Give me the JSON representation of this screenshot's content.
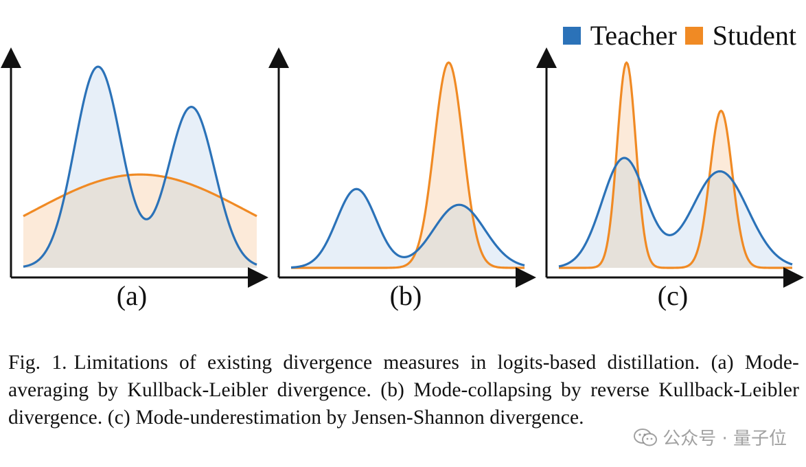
{
  "legend": [
    {
      "label": "Teacher",
      "color": "#2b72b8",
      "icon": "square-swatch"
    },
    {
      "label": "Student",
      "color": "#f08a24",
      "icon": "square-swatch"
    }
  ],
  "panels": [
    {
      "label": "(a)"
    },
    {
      "label": "(b)"
    },
    {
      "label": "(c)"
    }
  ],
  "caption": {
    "fig_num": "Fig. 1.",
    "text": "Limitations of existing divergence measures in logits-based distillation. (a) Mode-averaging by Kullback-Leibler divergence. (b) Mode-collapsing by reverse Kullback-Leibler divergence. (c) Mode-underestimation by Jensen-Shannon divergence."
  },
  "watermark": {
    "icon": "wechat-icon",
    "text": "公众号 · 量子位"
  },
  "colors": {
    "teacher_line": "#2b72b8",
    "teacher_fill": "#e3ecf7",
    "student_line": "#f08a24",
    "student_fill": "#fbe6d2",
    "overlap_fill": "#e6e1da",
    "axis": "#111111"
  },
  "chart_data": [
    {
      "type": "area",
      "panel": "(a)",
      "x": [
        0,
        1
      ],
      "series": [
        {
          "name": "Teacher",
          "components": [
            {
              "mu": 0.32,
              "sigma": 0.1,
              "weight": 1.0
            },
            {
              "mu": 0.72,
              "sigma": 0.1,
              "weight": 0.8
            }
          ],
          "peak": 0.97
        },
        {
          "name": "Student",
          "components": [
            {
              "mu": 0.5,
              "sigma": 0.46,
              "weight": 1.0
            }
          ],
          "peak": 0.45
        }
      ]
    },
    {
      "type": "area",
      "panel": "(b)",
      "x": [
        0,
        1
      ],
      "series": [
        {
          "name": "Teacher",
          "components": [
            {
              "mu": 0.28,
              "sigma": 0.085,
              "weight": 1.0
            },
            {
              "mu": 0.72,
              "sigma": 0.11,
              "weight": 0.8
            }
          ],
          "peak": 0.38
        },
        {
          "name": "Student",
          "components": [
            {
              "mu": 0.675,
              "sigma": 0.062,
              "weight": 1.0
            }
          ],
          "peak": 0.99
        }
      ]
    },
    {
      "type": "area",
      "panel": "(c)",
      "x": [
        0,
        1
      ],
      "series": [
        {
          "name": "Teacher",
          "components": [
            {
              "mu": 0.28,
              "sigma": 0.095,
              "weight": 1.0
            },
            {
              "mu": 0.69,
              "sigma": 0.12,
              "weight": 0.88
            }
          ],
          "peak": 0.53
        },
        {
          "name": "Student",
          "components": [
            {
              "mu": 0.29,
              "sigma": 0.04,
              "weight": 1.0
            },
            {
              "mu": 0.695,
              "sigma": 0.048,
              "weight": 0.765
            }
          ],
          "peak": 0.99
        }
      ]
    }
  ]
}
